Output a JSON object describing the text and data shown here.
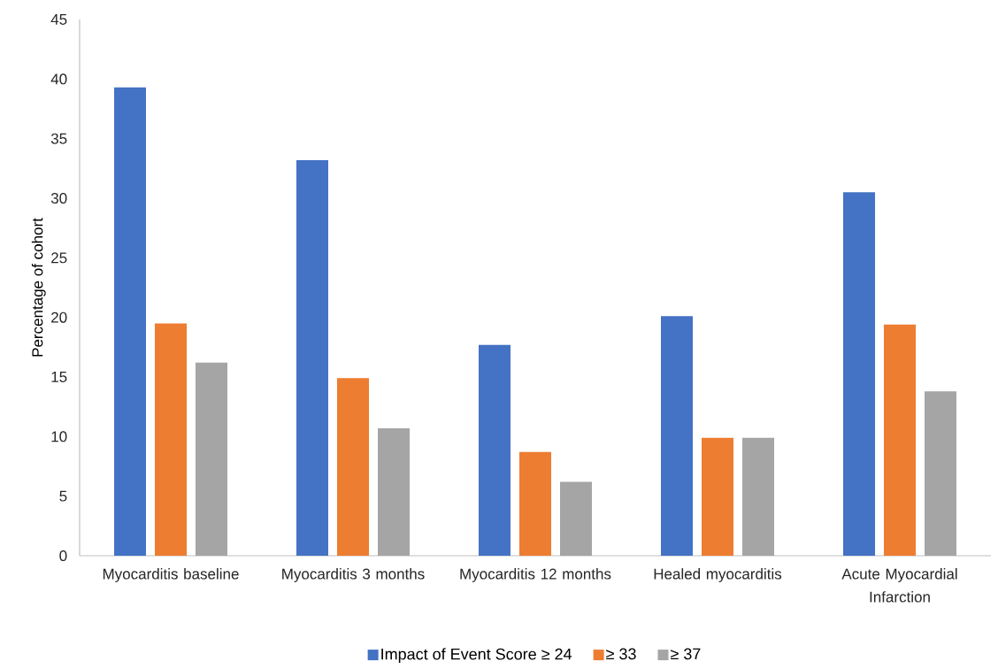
{
  "chart_data": {
    "type": "bar",
    "ylabel": "Percentage of cohort",
    "categories": [
      "Myocarditis baseline",
      "Myocarditis 3 months",
      "Myocarditis 12 months",
      "Healed myocarditis",
      "Acute Myocardial Infarction"
    ],
    "series": [
      {
        "name": "Impact of Event Score ≥ 24",
        "color": "#4472c4",
        "values": [
          39.3,
          33.2,
          17.7,
          20.1,
          30.5
        ]
      },
      {
        "name": "≥ 33",
        "color": "#ed7d31",
        "values": [
          19.5,
          14.9,
          8.7,
          9.9,
          19.4
        ]
      },
      {
        "name": "≥ 37",
        "color": "#a5a5a5",
        "values": [
          16.2,
          10.7,
          6.2,
          9.9,
          13.8
        ]
      }
    ],
    "ylim": [
      0,
      45
    ],
    "yticks": [
      0,
      5,
      10,
      15,
      20,
      25,
      30,
      35,
      40,
      45
    ],
    "legend": "bottom"
  }
}
